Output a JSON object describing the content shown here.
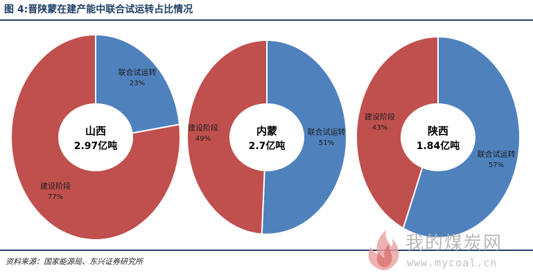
{
  "header": {
    "title": "图 4:晋陕蒙在建产能中联合试运转占比情况"
  },
  "colors": {
    "joint_trial": "#4f81bd",
    "construction": "#c0504d",
    "title": "#1f3f66"
  },
  "chart_data": [
    {
      "type": "pie",
      "donut": true,
      "center_label": [
        "山西",
        "2.97亿吨"
      ],
      "slices": [
        {
          "label": "联合试运转",
          "value": 23,
          "value_label": "23%",
          "color": "#4f81bd"
        },
        {
          "label": "建设阶段",
          "value": 77,
          "value_label": "77%",
          "color": "#c0504d"
        }
      ]
    },
    {
      "type": "pie",
      "donut": true,
      "center_label": [
        "内蒙",
        "2.7亿吨"
      ],
      "slices": [
        {
          "label": "联合试运转",
          "value": 51,
          "value_label": "51%",
          "color": "#4f81bd"
        },
        {
          "label": "建设阶段",
          "value": 49,
          "value_label": "49%",
          "color": "#c0504d"
        }
      ]
    },
    {
      "type": "pie",
      "donut": true,
      "center_label": [
        "陕西",
        "1.84亿吨"
      ],
      "slices": [
        {
          "label": "联合试运转",
          "value": 57,
          "value_label": "57%",
          "color": "#4f81bd"
        },
        {
          "label": "建设阶段",
          "value": 43,
          "value_label": "43%",
          "color": "#c0504d"
        }
      ]
    }
  ],
  "footer": {
    "source": "资料来源：国家能源局、东兴证券研究所"
  },
  "watermark": {
    "name": "我的煤炭网",
    "url": "www.mycoal.cn"
  }
}
